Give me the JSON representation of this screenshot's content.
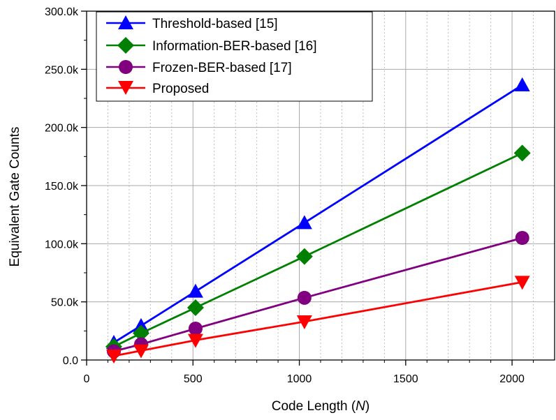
{
  "chart_data": {
    "type": "line",
    "xlabel": "Code Length (",
    "xlabel_var": "N",
    "xlabel_close": ")",
    "ylabel": "Equivalent Gate Counts",
    "xlim": [
      0,
      2200
    ],
    "ylim": [
      0,
      300000
    ],
    "x_ticks": [
      0,
      500,
      1000,
      1500,
      2000
    ],
    "x_tick_labels": [
      "0",
      "500",
      "1000",
      "1500",
      "2000"
    ],
    "y_ticks": [
      0,
      50000,
      100000,
      150000,
      200000,
      250000,
      300000
    ],
    "y_tick_labels": [
      "0.0",
      "50.0k",
      "100.0k",
      "150.0k",
      "200.0k",
      "250.0k",
      "300.0k"
    ],
    "grid": true,
    "legend_position": "top-left",
    "x": [
      128,
      256,
      512,
      1024,
      2048
    ],
    "series": [
      {
        "name": "Threshold-based [15]",
        "color": "#0000ff",
        "marker": "triangle-up",
        "values": [
          15000,
          29500,
          59000,
          118000,
          236500
        ]
      },
      {
        "name": "Information-BER-based [16]",
        "color": "#008000",
        "marker": "diamond",
        "values": [
          11500,
          23000,
          45000,
          89000,
          178000
        ]
      },
      {
        "name": "Frozen-BER-based [17]",
        "color": "#800080",
        "marker": "circle",
        "values": [
          7500,
          13500,
          27000,
          53500,
          105000
        ]
      },
      {
        "name": "Proposed",
        "color": "#ff0000",
        "marker": "triangle-down",
        "values": [
          3500,
          8000,
          17000,
          33000,
          67000
        ]
      }
    ]
  }
}
